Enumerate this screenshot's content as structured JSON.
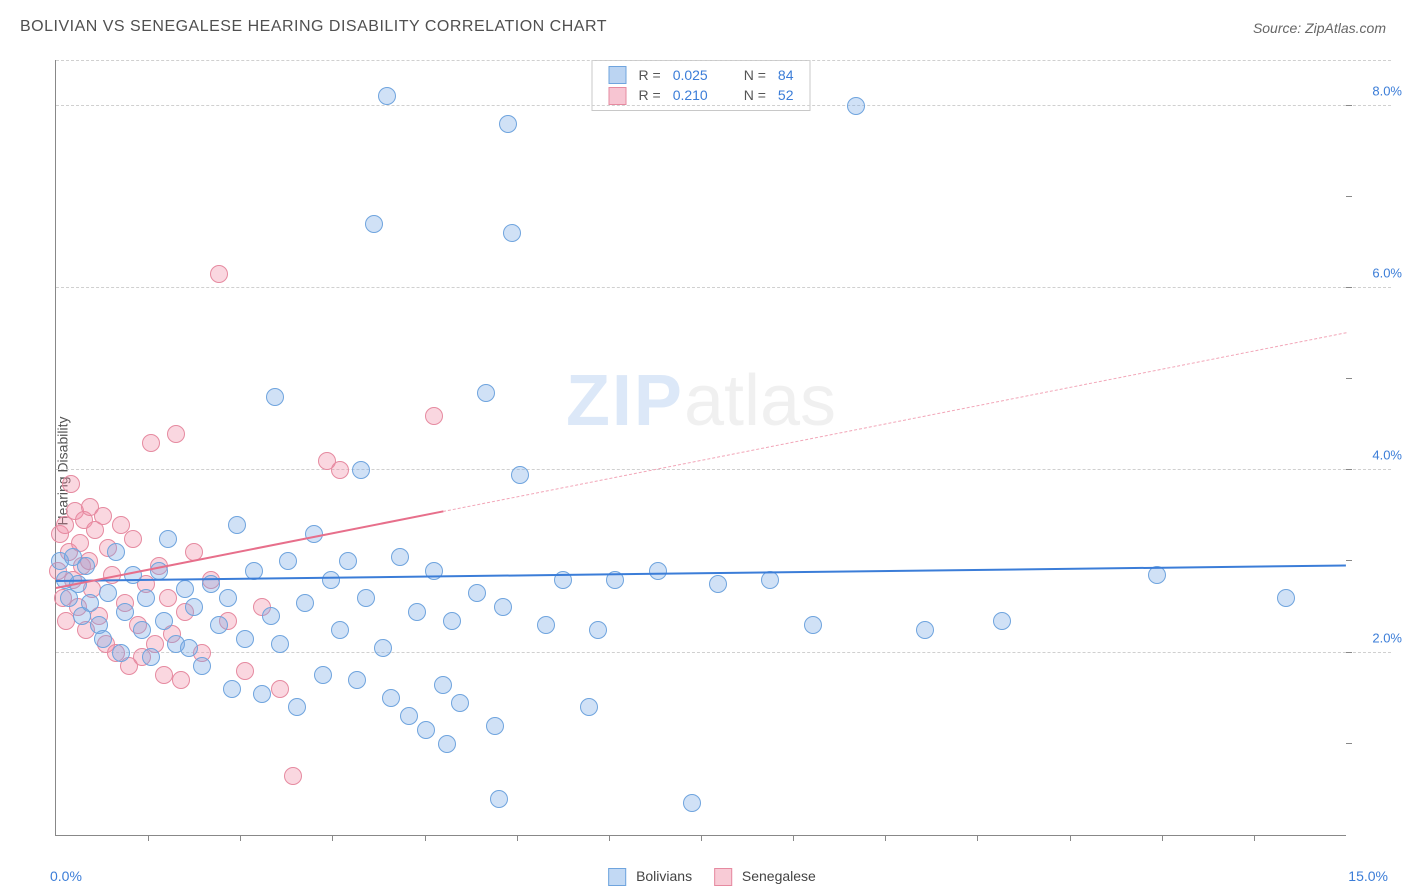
{
  "header": {
    "title": "BOLIVIAN VS SENEGALESE HEARING DISABILITY CORRELATION CHART",
    "source_prefix": "Source: ",
    "source_name": "ZipAtlas.com"
  },
  "watermark": {
    "zip": "ZIP",
    "atlas": "atlas"
  },
  "chart": {
    "type": "scatter",
    "ylabel": "Hearing Disability",
    "xlim": [
      0,
      15
    ],
    "ylim": [
      0,
      8.5
    ],
    "x_axis_labels": {
      "left": "0.0%",
      "right": "15.0%"
    },
    "x_ticks": [
      1.07,
      2.14,
      3.21,
      4.29,
      5.36,
      6.43,
      7.5,
      8.57,
      9.64,
      10.71,
      11.79,
      12.86,
      13.93
    ],
    "y_gridlines": [
      {
        "v": 2.0,
        "label": "2.0%"
      },
      {
        "v": 4.0,
        "label": "4.0%"
      },
      {
        "v": 6.0,
        "label": "6.0%"
      },
      {
        "v": 8.0,
        "label": "8.0%"
      }
    ],
    "y_right_ticks": [
      1,
      2,
      3,
      4,
      5,
      6,
      7,
      8
    ],
    "background_color": "#ffffff",
    "grid_color": "#d0d0d0",
    "marker_radius": 9,
    "marker_border_width": 1.2,
    "series": [
      {
        "name": "Bolivians",
        "fill": "rgba(120,170,230,0.35)",
        "stroke": "#6fa4de",
        "R": "0.025",
        "N": "84",
        "trend": {
          "y_at_x0": 2.78,
          "y_at_x15": 2.95,
          "solid_until_x": 15
        },
        "points": [
          [
            0.05,
            3.0
          ],
          [
            0.1,
            2.8
          ],
          [
            0.15,
            2.6
          ],
          [
            0.2,
            3.05
          ],
          [
            0.25,
            2.75
          ],
          [
            0.3,
            2.4
          ],
          [
            0.35,
            2.95
          ],
          [
            0.4,
            2.55
          ],
          [
            0.5,
            2.3
          ],
          [
            0.55,
            2.15
          ],
          [
            0.6,
            2.65
          ],
          [
            0.7,
            3.1
          ],
          [
            0.75,
            2.0
          ],
          [
            0.8,
            2.45
          ],
          [
            0.9,
            2.85
          ],
          [
            1.0,
            2.25
          ],
          [
            1.05,
            2.6
          ],
          [
            1.1,
            1.95
          ],
          [
            1.2,
            2.9
          ],
          [
            1.25,
            2.35
          ],
          [
            1.3,
            3.25
          ],
          [
            1.4,
            2.1
          ],
          [
            1.5,
            2.7
          ],
          [
            1.55,
            2.05
          ],
          [
            1.6,
            2.5
          ],
          [
            1.7,
            1.85
          ],
          [
            1.8,
            2.75
          ],
          [
            1.9,
            2.3
          ],
          [
            2.0,
            2.6
          ],
          [
            2.05,
            1.6
          ],
          [
            2.1,
            3.4
          ],
          [
            2.2,
            2.15
          ],
          [
            2.3,
            2.9
          ],
          [
            2.4,
            1.55
          ],
          [
            2.5,
            2.4
          ],
          [
            2.55,
            4.8
          ],
          [
            2.6,
            2.1
          ],
          [
            2.7,
            3.0
          ],
          [
            2.8,
            1.4
          ],
          [
            2.9,
            2.55
          ],
          [
            3.0,
            3.3
          ],
          [
            3.1,
            1.75
          ],
          [
            3.2,
            2.8
          ],
          [
            3.3,
            2.25
          ],
          [
            3.4,
            3.0
          ],
          [
            3.5,
            1.7
          ],
          [
            3.55,
            4.0
          ],
          [
            3.6,
            2.6
          ],
          [
            3.7,
            6.7
          ],
          [
            3.8,
            2.05
          ],
          [
            3.85,
            8.1
          ],
          [
            3.9,
            1.5
          ],
          [
            4.0,
            3.05
          ],
          [
            4.1,
            1.3
          ],
          [
            4.2,
            2.45
          ],
          [
            4.3,
            1.15
          ],
          [
            4.4,
            2.9
          ],
          [
            4.5,
            1.65
          ],
          [
            4.55,
            1.0
          ],
          [
            4.6,
            2.35
          ],
          [
            4.7,
            1.45
          ],
          [
            4.9,
            2.65
          ],
          [
            5.0,
            4.85
          ],
          [
            5.1,
            1.2
          ],
          [
            5.15,
            0.4
          ],
          [
            5.2,
            2.5
          ],
          [
            5.25,
            7.8
          ],
          [
            5.3,
            6.6
          ],
          [
            5.4,
            3.95
          ],
          [
            5.7,
            2.3
          ],
          [
            5.9,
            2.8
          ],
          [
            6.2,
            1.4
          ],
          [
            6.3,
            2.25
          ],
          [
            6.5,
            2.8
          ],
          [
            7.0,
            2.9
          ],
          [
            7.4,
            0.35
          ],
          [
            7.7,
            2.75
          ],
          [
            8.3,
            2.8
          ],
          [
            8.8,
            2.3
          ],
          [
            9.3,
            8.0
          ],
          [
            10.1,
            2.25
          ],
          [
            11.0,
            2.35
          ],
          [
            12.8,
            2.85
          ],
          [
            14.3,
            2.6
          ]
        ]
      },
      {
        "name": "Senegalese",
        "fill": "rgba(240,140,165,0.35)",
        "stroke": "#e68aa0",
        "R": "0.210",
        "N": "52",
        "trend": {
          "y_at_x0": 2.7,
          "y_at_x15": 5.5,
          "solid_until_x": 4.5
        },
        "points": [
          [
            0.02,
            2.9
          ],
          [
            0.05,
            3.3
          ],
          [
            0.08,
            2.6
          ],
          [
            0.1,
            3.4
          ],
          [
            0.12,
            2.35
          ],
          [
            0.15,
            3.1
          ],
          [
            0.18,
            3.85
          ],
          [
            0.2,
            2.8
          ],
          [
            0.22,
            3.55
          ],
          [
            0.25,
            2.5
          ],
          [
            0.28,
            3.2
          ],
          [
            0.3,
            2.95
          ],
          [
            0.32,
            3.45
          ],
          [
            0.35,
            2.25
          ],
          [
            0.38,
            3.0
          ],
          [
            0.4,
            3.6
          ],
          [
            0.42,
            2.7
          ],
          [
            0.45,
            3.35
          ],
          [
            0.5,
            2.4
          ],
          [
            0.55,
            3.5
          ],
          [
            0.58,
            2.1
          ],
          [
            0.6,
            3.15
          ],
          [
            0.65,
            2.85
          ],
          [
            0.7,
            2.0
          ],
          [
            0.75,
            3.4
          ],
          [
            0.8,
            2.55
          ],
          [
            0.85,
            1.85
          ],
          [
            0.9,
            3.25
          ],
          [
            0.95,
            2.3
          ],
          [
            1.0,
            1.95
          ],
          [
            1.05,
            2.75
          ],
          [
            1.1,
            4.3
          ],
          [
            1.15,
            2.1
          ],
          [
            1.2,
            2.95
          ],
          [
            1.25,
            1.75
          ],
          [
            1.3,
            2.6
          ],
          [
            1.35,
            2.2
          ],
          [
            1.4,
            4.4
          ],
          [
            1.45,
            1.7
          ],
          [
            1.5,
            2.45
          ],
          [
            1.6,
            3.1
          ],
          [
            1.7,
            2.0
          ],
          [
            1.8,
            2.8
          ],
          [
            1.9,
            6.15
          ],
          [
            2.0,
            2.35
          ],
          [
            2.2,
            1.8
          ],
          [
            2.4,
            2.5
          ],
          [
            2.6,
            1.6
          ],
          [
            2.75,
            0.65
          ],
          [
            3.15,
            4.1
          ],
          [
            3.3,
            4.0
          ],
          [
            4.4,
            4.6
          ]
        ]
      }
    ],
    "legend_top_labels": {
      "R": "R =",
      "N": "N ="
    },
    "legend_bottom": [
      {
        "label": "Bolivians",
        "fill": "rgba(120,170,230,0.45)",
        "stroke": "#6fa4de"
      },
      {
        "label": "Senegalese",
        "fill": "rgba(240,140,165,0.45)",
        "stroke": "#e68aa0"
      }
    ]
  }
}
